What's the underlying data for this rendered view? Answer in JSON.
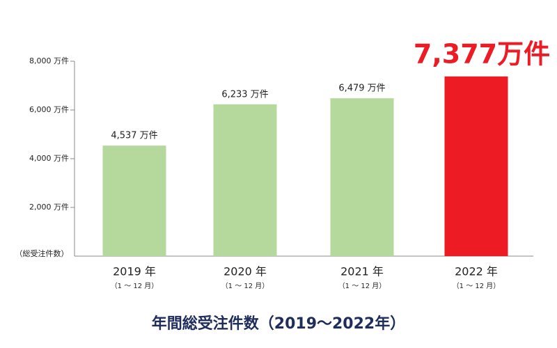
{
  "chart_data": {
    "type": "bar",
    "title": "年間総受注件数（2019〜2022年）",
    "y_label": "（総受注件数）",
    "categories": [
      "2019 年",
      "2020 年",
      "2021 年",
      "2022 年"
    ],
    "category_notes": [
      "（1 〜 12 月）",
      "（1 〜 12 月）",
      "（1 〜 12 月）",
      "（1 〜 12 月）"
    ],
    "values": [
      4537,
      6233,
      6479,
      7377
    ],
    "value_labels": [
      "4,537 万件",
      "6,233 万件",
      "6,479 万件",
      "7,377万件"
    ],
    "colors": [
      "#b5d99c",
      "#b5d99c",
      "#b5d99c",
      "#ed1c24"
    ],
    "ylim": [
      0,
      8000
    ],
    "yticks": [
      {
        "value": 2000,
        "label": "2,000 万件"
      },
      {
        "value": 4000,
        "label": "4,000 万件"
      },
      {
        "value": 6000,
        "label": "6,000 万件"
      },
      {
        "value": 8000,
        "label": "8,000 万件"
      }
    ]
  }
}
